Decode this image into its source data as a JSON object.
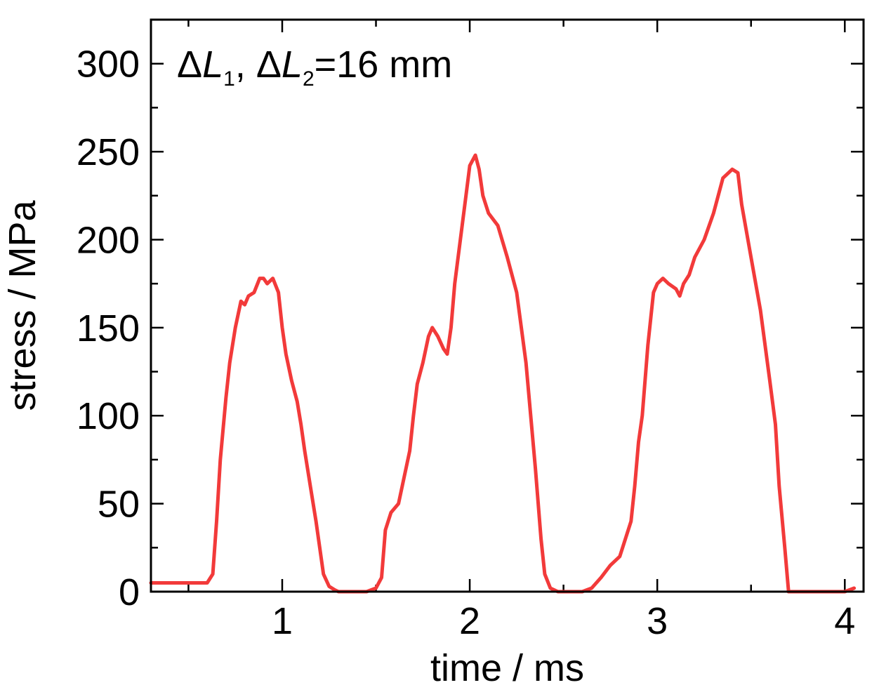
{
  "chart_data": {
    "type": "line",
    "title": "",
    "xlabel": "time / ms",
    "ylabel": "stress / MPa",
    "xlim": [
      0.3,
      4.1
    ],
    "ylim": [
      0,
      325
    ],
    "x_ticks": [
      1,
      2,
      3,
      4
    ],
    "x_tick_labels": [
      "1",
      "2",
      "3",
      "4"
    ],
    "y_ticks": [
      0,
      50,
      100,
      150,
      200,
      250,
      300
    ],
    "y_tick_labels": [
      "0",
      "50",
      "100",
      "150",
      "200",
      "250",
      "300"
    ],
    "grid": false,
    "legend": "none",
    "annotation": {
      "delta1": "Δ",
      "var1": "L",
      "sub1": "1",
      "sep": ", ",
      "delta2": "Δ",
      "var2": "L",
      "sub2": "2",
      "rest": "=16 mm"
    },
    "series": [
      {
        "color": "#f23a3a",
        "x": [
          0.3,
          0.5,
          0.6,
          0.63,
          0.65,
          0.67,
          0.7,
          0.72,
          0.75,
          0.78,
          0.8,
          0.82,
          0.85,
          0.88,
          0.9,
          0.92,
          0.95,
          0.98,
          1.0,
          1.02,
          1.05,
          1.08,
          1.1,
          1.12,
          1.15,
          1.18,
          1.2,
          1.22,
          1.25,
          1.28,
          1.3,
          1.35,
          1.4,
          1.45,
          1.5,
          1.53,
          1.55,
          1.58,
          1.62,
          1.65,
          1.68,
          1.7,
          1.72,
          1.75,
          1.78,
          1.8,
          1.83,
          1.86,
          1.88,
          1.9,
          1.92,
          1.95,
          1.98,
          2.0,
          2.03,
          2.05,
          2.07,
          2.1,
          2.15,
          2.2,
          2.25,
          2.3,
          2.35,
          2.38,
          2.4,
          2.43,
          2.47,
          2.5,
          2.55,
          2.6,
          2.65,
          2.7,
          2.75,
          2.8,
          2.83,
          2.86,
          2.88,
          2.9,
          2.92,
          2.95,
          2.98,
          3.0,
          3.03,
          3.06,
          3.1,
          3.12,
          3.14,
          3.17,
          3.2,
          3.25,
          3.3,
          3.35,
          3.38,
          3.4,
          3.43,
          3.45,
          3.5,
          3.55,
          3.6,
          3.63,
          3.65,
          3.68,
          3.7,
          3.75,
          3.85,
          4.0,
          4.05
        ],
        "y": [
          5,
          5,
          5,
          10,
          40,
          75,
          110,
          130,
          150,
          165,
          163,
          168,
          170,
          178,
          178,
          175,
          178,
          170,
          150,
          135,
          120,
          108,
          95,
          80,
          60,
          40,
          25,
          10,
          3,
          1,
          0,
          0,
          0,
          0,
          2,
          8,
          35,
          45,
          50,
          65,
          80,
          100,
          118,
          130,
          145,
          150,
          145,
          138,
          135,
          150,
          175,
          200,
          225,
          242,
          248,
          240,
          225,
          215,
          208,
          190,
          170,
          130,
          70,
          30,
          10,
          2,
          0,
          0,
          0,
          0,
          2,
          8,
          15,
          20,
          30,
          40,
          60,
          85,
          100,
          140,
          170,
          175,
          178,
          175,
          172,
          168,
          175,
          180,
          190,
          200,
          215,
          235,
          238,
          240,
          238,
          220,
          190,
          160,
          120,
          95,
          60,
          25,
          0,
          0,
          0,
          0,
          2
        ]
      }
    ]
  }
}
